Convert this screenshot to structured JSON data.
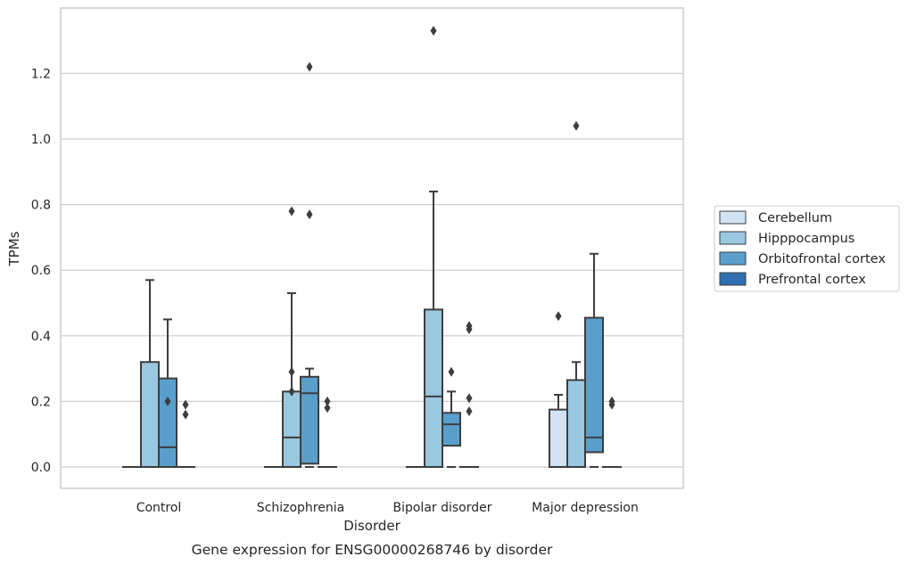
{
  "chart_data": {
    "type": "box",
    "title": "",
    "caption": "Gene expression for ENSG00000268746 by disorder",
    "xlabel": "Disorder",
    "ylabel": "TPMs",
    "ylim": [
      -0.065,
      1.4
    ],
    "yticks": [
      "0.0",
      "0.2",
      "0.4",
      "0.6",
      "0.8",
      "1.0",
      "1.2"
    ],
    "grid": "horizontal",
    "legend_position": "right",
    "categories": [
      "Control",
      "Schizophrenia",
      "Bipolar disorder",
      "Major depression"
    ],
    "series": [
      {
        "name": "Cerebellum",
        "color": "#d1e2f2",
        "boxes": [
          {
            "q1": 0,
            "median": 0,
            "q3": 0,
            "wlow": 0,
            "whigh": 0,
            "outliers": []
          },
          {
            "q1": 0,
            "median": 0,
            "q3": 0,
            "wlow": 0,
            "whigh": 0,
            "outliers": []
          },
          {
            "q1": 0,
            "median": 0,
            "q3": 0,
            "wlow": 0,
            "whigh": 0,
            "outliers": []
          },
          {
            "q1": 0,
            "median": 0,
            "q3": 0.175,
            "wlow": 0,
            "whigh": 0.22,
            "outliers": [
              0.46
            ]
          }
        ]
      },
      {
        "name": "Hipppocampus",
        "color": "#9ac8e0",
        "boxes": [
          {
            "q1": 0,
            "median": 0,
            "q3": 0.32,
            "wlow": 0,
            "whigh": 0.57,
            "outliers": []
          },
          {
            "q1": 0,
            "median": 0.09,
            "q3": 0.23,
            "wlow": 0,
            "whigh": 0.53,
            "outliers": [
              0.29,
              0.23,
              0.78
            ]
          },
          {
            "q1": 0,
            "median": 0.215,
            "q3": 0.48,
            "wlow": 0,
            "whigh": 0.84,
            "outliers": [
              1.33
            ]
          },
          {
            "q1": 0,
            "median": 0,
            "q3": 0.265,
            "wlow": 0,
            "whigh": 0.32,
            "outliers": [
              1.04
            ]
          }
        ]
      },
      {
        "name": "Orbitofrontal cortex",
        "color": "#5a9fcb",
        "boxes": [
          {
            "q1": 0,
            "median": 0.06,
            "q3": 0.27,
            "wlow": 0,
            "whigh": 0.45,
            "outliers": [
              0.2
            ]
          },
          {
            "q1": 0.01,
            "median": 0.225,
            "q3": 0.275,
            "wlow": 0,
            "whigh": 0.3,
            "outliers": [
              0.77,
              1.22
            ]
          },
          {
            "q1": 0.065,
            "median": 0.13,
            "q3": 0.165,
            "wlow": 0,
            "whigh": 0.23,
            "outliers": [
              0.29
            ]
          },
          {
            "q1": 0.045,
            "median": 0.09,
            "q3": 0.455,
            "wlow": 0,
            "whigh": 0.65,
            "outliers": []
          }
        ]
      },
      {
        "name": "Prefrontal cortex",
        "color": "#2e6fb0",
        "boxes": [
          {
            "q1": 0,
            "median": 0,
            "q3": 0,
            "wlow": 0,
            "whigh": 0,
            "outliers": [
              0.19,
              0.16
            ]
          },
          {
            "q1": 0,
            "median": 0,
            "q3": 0,
            "wlow": 0,
            "whigh": 0,
            "outliers": [
              0.2,
              0.18
            ]
          },
          {
            "q1": 0,
            "median": 0,
            "q3": 0,
            "wlow": 0,
            "whigh": 0,
            "outliers": [
              0.43,
              0.42,
              0.21,
              0.17
            ]
          },
          {
            "q1": 0,
            "median": 0,
            "q3": 0,
            "wlow": 0,
            "whigh": 0,
            "outliers": [
              0.2,
              0.19
            ]
          }
        ]
      }
    ]
  }
}
